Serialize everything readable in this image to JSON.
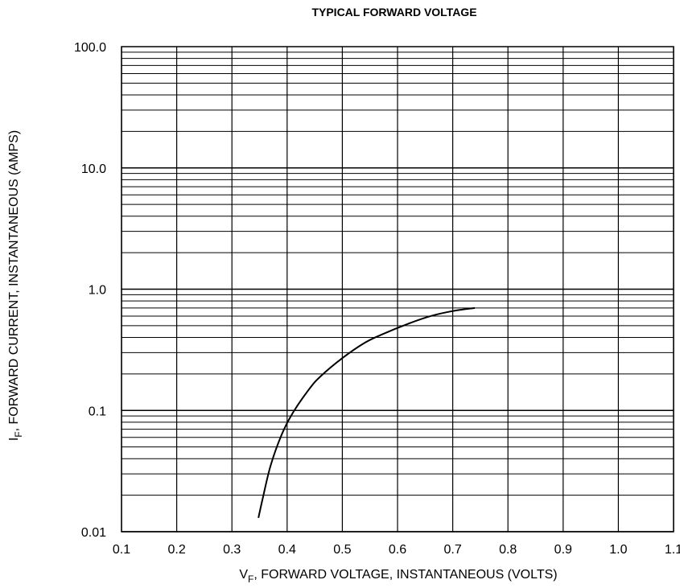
{
  "chart_data": {
    "type": "line",
    "title": "TYPICAL FORWARD VOLTAGE",
    "xlabel": {
      "symbol": "V",
      "subscript": "F",
      "text": ", FORWARD VOLTAGE, INSTANTANEOUS (VOLTS)"
    },
    "ylabel": {
      "symbol": "I",
      "subscript": "F",
      "text": ", FORWARD CURRENT, INSTANTANEOUS (AMPS)"
    },
    "xlim": [
      0.1,
      1.1
    ],
    "ylim": [
      0.01,
      100
    ],
    "y_scale": "log",
    "x_ticks": [
      "0.1",
      "0.2",
      "0.3",
      "0.4",
      "0.5",
      "0.6",
      "0.7",
      "0.8",
      "0.9",
      "1.0",
      "1.1"
    ],
    "y_ticks": [
      {
        "value": 0.01,
        "label": "0.01"
      },
      {
        "value": 0.1,
        "label": "0.1"
      },
      {
        "value": 1,
        "label": "1.0"
      },
      {
        "value": 10,
        "label": "10.0"
      },
      {
        "value": 100,
        "label": "100.0"
      }
    ],
    "grid": true,
    "series": [
      {
        "x": [
          0.348,
          0.356,
          0.37,
          0.39,
          0.41,
          0.44,
          0.46,
          0.5,
          0.54,
          0.57,
          0.62,
          0.66,
          0.7,
          0.74
        ],
        "y": [
          0.013,
          0.019,
          0.035,
          0.063,
          0.095,
          0.15,
          0.19,
          0.27,
          0.36,
          0.42,
          0.52,
          0.6,
          0.66,
          0.7
        ]
      }
    ]
  }
}
